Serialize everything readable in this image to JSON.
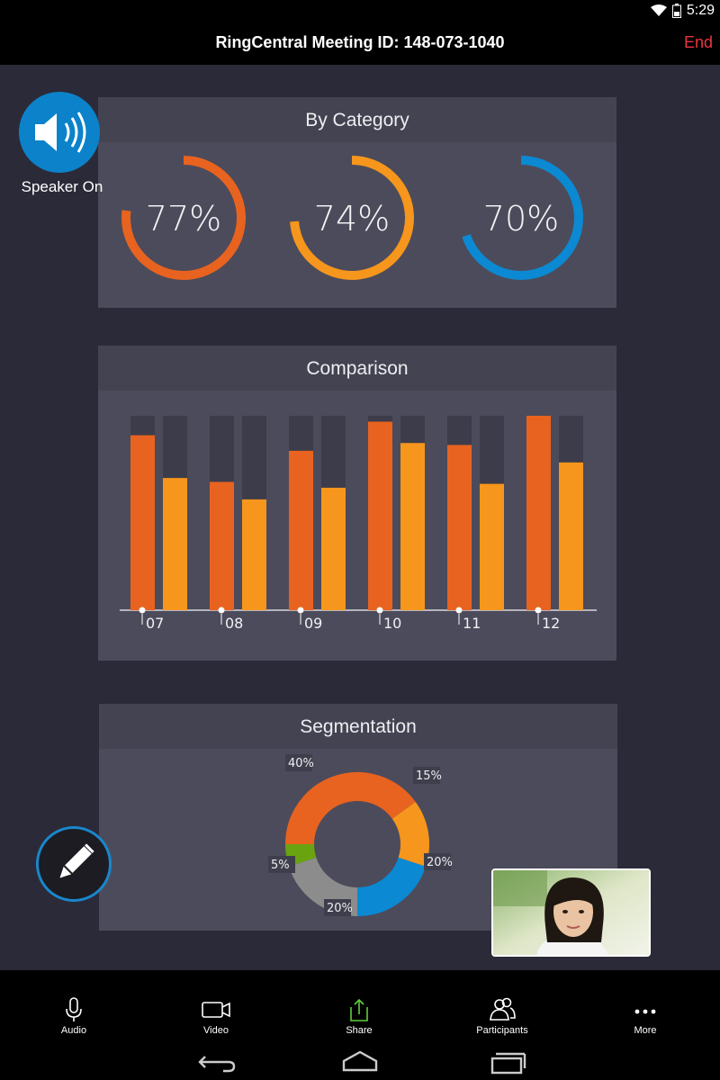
{
  "status": {
    "time": "5:29"
  },
  "header": {
    "title": "RingCentral Meeting ID: 148-073-1040",
    "end_label": "End"
  },
  "overlay": {
    "speaker_label": "Speaker On"
  },
  "category_panel": {
    "title": "By Category",
    "gauges": [
      {
        "label": "77%",
        "value": 77,
        "color": "#e8631f"
      },
      {
        "label": "74%",
        "value": 74,
        "color": "#f6961c"
      },
      {
        "label": "70%",
        "value": 70,
        "color": "#0b89d2"
      }
    ]
  },
  "comparison_panel": {
    "title": "Comparison"
  },
  "segmentation_panel": {
    "title": "Segmentation"
  },
  "chart_data": [
    {
      "type": "pie",
      "categories": [
        "77%",
        "74%",
        "70%"
      ],
      "values": [
        77,
        74,
        70
      ],
      "title": "By Category"
    },
    {
      "type": "bar",
      "title": "Comparison",
      "categories": [
        "07",
        "08",
        "09",
        "10",
        "11",
        "12"
      ],
      "series": [
        {
          "values": [
            90,
            66,
            82,
            97,
            85,
            100
          ],
          "color": "#e8631f"
        },
        {
          "values": [
            68,
            57,
            63,
            86,
            65,
            76
          ],
          "color": "#f6961c"
        }
      ],
      "ylim": [
        0,
        100
      ],
      "grid": false
    },
    {
      "type": "pie",
      "title": "Segmentation",
      "labels": [
        "40%",
        "15%",
        "20%",
        "20%",
        "5%"
      ],
      "values": [
        40,
        15,
        20,
        20,
        5
      ],
      "colors": [
        "#e8631f",
        "#f6961c",
        "#0b89d2",
        "#8c8c8c",
        "#6aa310"
      ]
    }
  ],
  "toolbar": {
    "audio_label": "Audio",
    "video_label": "Video",
    "share_label": "Share",
    "participants_label": "Participants",
    "more_label": "More"
  },
  "icons": {
    "speaker": "speaker-on-icon",
    "pencil": "pencil-icon",
    "audio": "microphone-icon",
    "video": "video-camera-icon",
    "share": "share-icon",
    "participants": "participants-icon",
    "more": "more-dots-icon",
    "back": "back-icon",
    "home": "home-icon",
    "recents": "recents-icon"
  }
}
